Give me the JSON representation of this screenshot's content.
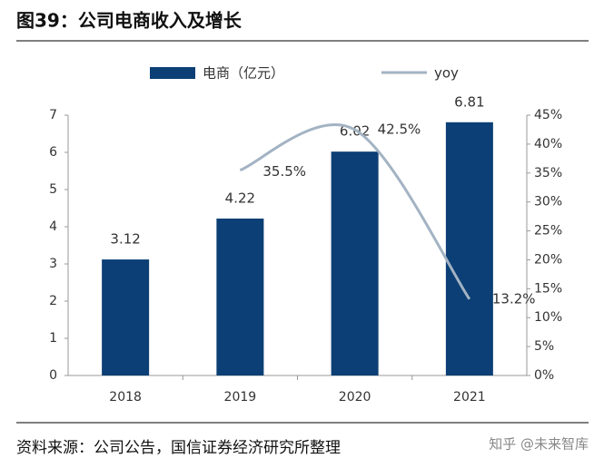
{
  "title": "图39：公司电商收入及增长",
  "source": "资料来源：公司公告，国信证券经济研究所整理",
  "watermark": "知乎 @未来智库",
  "chart_data": {
    "type": "bar",
    "categories": [
      "2018",
      "2019",
      "2020",
      "2021"
    ],
    "series": [
      {
        "name": "电商（亿元）",
        "type": "bar",
        "color": "#0b3f75",
        "values": [
          3.12,
          4.22,
          6.02,
          6.81
        ]
      },
      {
        "name": "yoy",
        "type": "line",
        "axis": "y2",
        "color": "#a3b3c3",
        "values": [
          null,
          35.5,
          42.5,
          13.2
        ],
        "value_labels": [
          null,
          "35.5%",
          "42.5%",
          "13.2%"
        ]
      }
    ],
    "ylim": [
      0,
      7
    ],
    "yticks": [
      0,
      1,
      2,
      3,
      4,
      5,
      6,
      7
    ],
    "y2lim": [
      0,
      45
    ],
    "y2ticks": [
      {
        "value": 0,
        "label": "0%"
      },
      {
        "value": 5,
        "label": "5%"
      },
      {
        "value": 10,
        "label": "10%"
      },
      {
        "value": 15,
        "label": "15%"
      },
      {
        "value": 20,
        "label": "20%"
      },
      {
        "value": 25,
        "label": "25%"
      },
      {
        "value": 30,
        "label": "30%"
      },
      {
        "value": 35,
        "label": "35%"
      },
      {
        "value": 40,
        "label": "40%"
      },
      {
        "value": 45,
        "label": "45%"
      }
    ],
    "legend": "top"
  }
}
